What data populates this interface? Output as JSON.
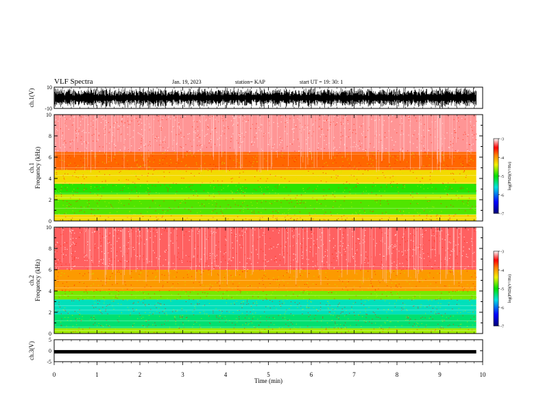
{
  "header": {
    "title": "VLF Spectra",
    "date": "Jan. 19, 2023",
    "station": "station= KAP",
    "start_ut": "start  UT  =   19: 30: 1"
  },
  "colors": {
    "low": "#0000c8",
    "mid_low": "#00e0e0",
    "mid": "#00e000",
    "mid_high": "#f0f000",
    "high": "#ff0000",
    "top": "#ffffff"
  },
  "chart_data": [
    {
      "type": "line",
      "id": "ch1-waveform",
      "ylabel": "ch.1(V)",
      "ylim": [
        -10,
        10
      ],
      "yticks": [
        "10",
        "-10"
      ],
      "xlim": [
        0,
        10
      ]
    },
    {
      "type": "heatmap",
      "id": "ch1-spectrogram",
      "ylabel": "ch.1\nFrequency (kHz)",
      "ylabel_top": "ch.1",
      "ylabel_bottom": "Frequency (kHz)",
      "ylim": [
        0,
        10
      ],
      "yticks": [
        "0",
        "2",
        "4",
        "6",
        "8",
        "10"
      ],
      "xlim": [
        0,
        9.85
      ],
      "bands": [
        {
          "from": 0.0,
          "to": 0.6,
          "level": -4.3
        },
        {
          "from": 0.6,
          "to": 1.0,
          "level": -4.8
        },
        {
          "from": 1.0,
          "to": 2.0,
          "level": -4.8
        },
        {
          "from": 2.0,
          "to": 2.5,
          "level": -4.5
        },
        {
          "from": 2.5,
          "to": 3.5,
          "level": -4.9
        },
        {
          "from": 3.5,
          "to": 4.8,
          "level": -4.3
        },
        {
          "from": 4.8,
          "to": 6.5,
          "level": -3.8
        },
        {
          "from": 6.5,
          "to": 10.0,
          "level": -3.2
        }
      ],
      "colorbar": {
        "range": [
          -7,
          -3
        ],
        "ticks": [
          "-3",
          "-4",
          "-5",
          "-6",
          "-7"
        ],
        "label": "log(PSD)(V²/Hz)"
      }
    },
    {
      "type": "heatmap",
      "id": "ch2-spectrogram",
      "ylabel": "ch.2\nFrequency (kHz)",
      "ylabel_top": "ch.2",
      "ylabel_bottom": "Frequency (kHz)",
      "ylim": [
        0,
        10
      ],
      "yticks": [
        "0",
        "2",
        "4",
        "6",
        "8",
        "10"
      ],
      "xlim": [
        0,
        9.85
      ],
      "bands": [
        {
          "from": 0.0,
          "to": 0.5,
          "level": -4.6
        },
        {
          "from": 0.5,
          "to": 1.8,
          "level": -5.3
        },
        {
          "from": 1.8,
          "to": 3.2,
          "level": -5.5
        },
        {
          "from": 3.2,
          "to": 4.0,
          "level": -4.7
        },
        {
          "from": 4.0,
          "to": 6.0,
          "level": -4.0
        },
        {
          "from": 6.0,
          "to": 10.0,
          "level": -3.3
        }
      ],
      "colorbar": {
        "range": [
          -7,
          -3
        ],
        "ticks": [
          "-3",
          "-4",
          "-5",
          "-6",
          "-7"
        ],
        "label": "log(PSD)(V²/Hz)"
      }
    },
    {
      "type": "line",
      "id": "ch3-waveform",
      "ylabel": "ch.3(V)",
      "ylim": [
        -5,
        5
      ],
      "yticks": [
        "5",
        "0",
        "-5"
      ],
      "level": -0.5,
      "xlim": [
        0,
        10
      ],
      "xlabel": "Time (min)",
      "xticks": [
        "0",
        "1",
        "2",
        "3",
        "4",
        "5",
        "6",
        "7",
        "8",
        "9",
        "10"
      ]
    }
  ]
}
